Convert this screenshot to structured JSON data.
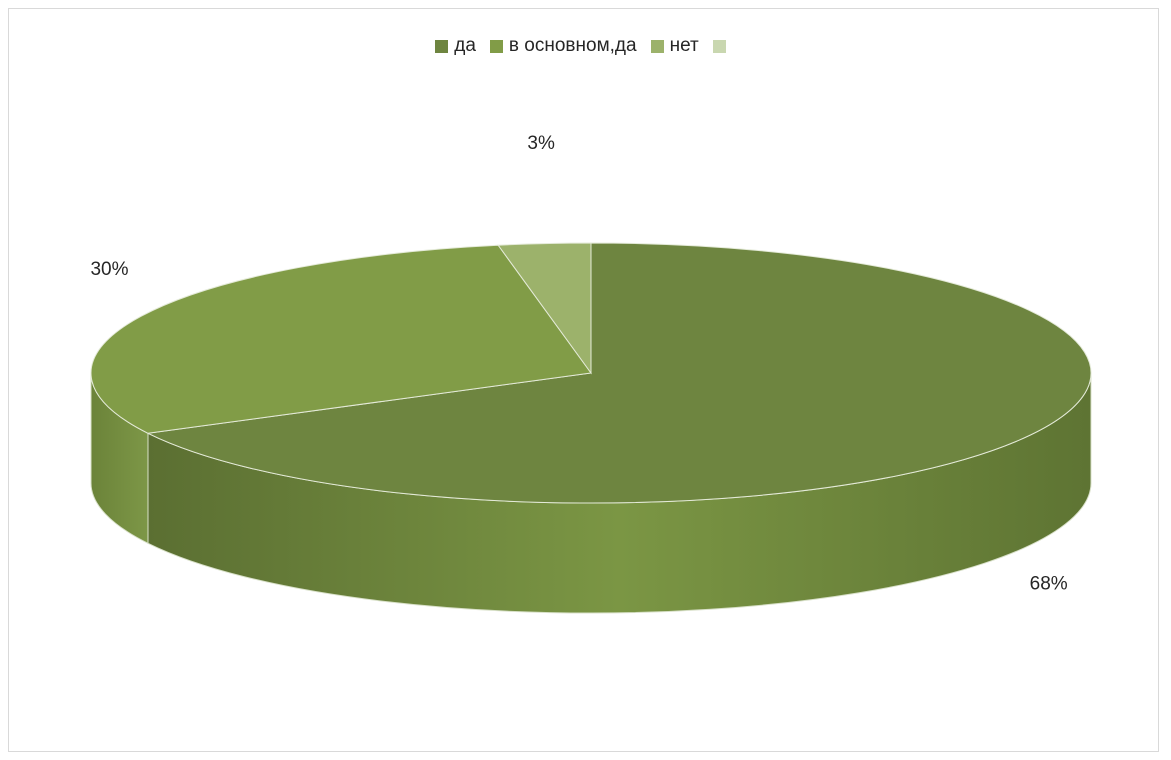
{
  "chart_data": {
    "type": "pie",
    "style": "3d",
    "title": "",
    "legend_position": "top",
    "categories": [
      "да",
      "в основном,да",
      "нет",
      ""
    ],
    "values": [
      68,
      30,
      3,
      0
    ],
    "value_labels": [
      "68%",
      "30%",
      "3%",
      ""
    ],
    "colors": [
      "#6e8540",
      "#819c47",
      "#9cb26b",
      "#c9d7b0"
    ]
  }
}
